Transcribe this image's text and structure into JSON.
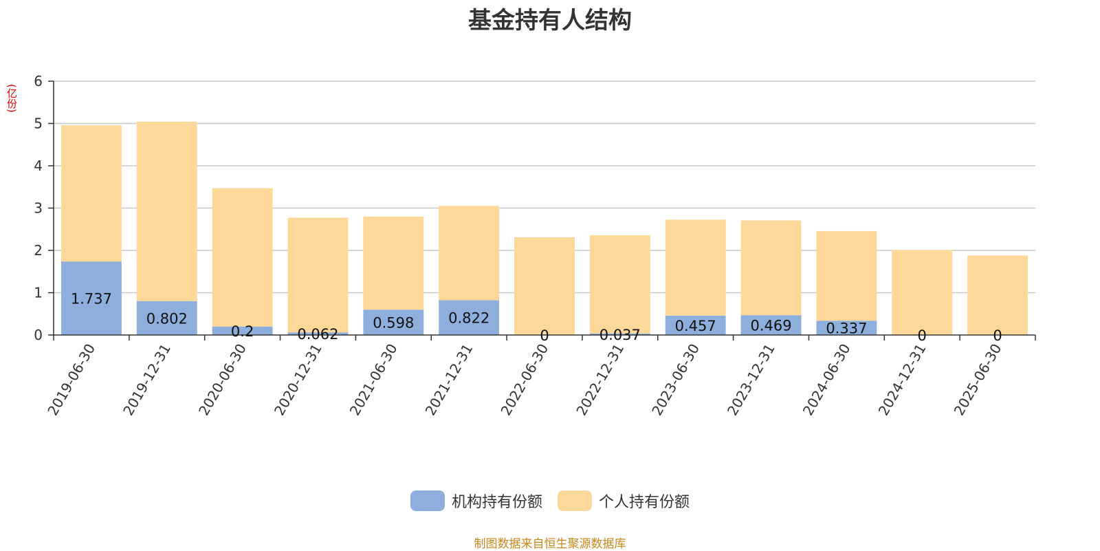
{
  "chart_data": {
    "type": "bar",
    "stacked": true,
    "title": "基金持有人结构",
    "ylabel": "(亿份)",
    "ylim": [
      0,
      6
    ],
    "yticks": [
      0,
      1,
      2,
      3,
      4,
      5,
      6
    ],
    "grid": true,
    "legend_position": "bottom",
    "categories": [
      "2019-06-30",
      "2019-12-31",
      "2020-06-30",
      "2020-12-31",
      "2021-06-30",
      "2021-12-31",
      "2022-06-30",
      "2022-12-31",
      "2023-06-30",
      "2023-12-31",
      "2024-06-30",
      "2024-12-31",
      "2025-06-30"
    ],
    "series": [
      {
        "name": "机构持有份额",
        "color": "#8eaedb",
        "values": [
          1.737,
          0.802,
          0.2,
          0.062,
          0.598,
          0.822,
          0,
          0.037,
          0.457,
          0.469,
          0.337,
          0,
          0
        ],
        "labels": [
          "1.737",
          "0.802",
          "0.2",
          "0.062",
          "0.598",
          "0.822",
          "0",
          "0.037",
          "0.457",
          "0.469",
          "0.337",
          "0",
          "0"
        ]
      },
      {
        "name": "个人持有份额",
        "color": "#fed899",
        "values": [
          3.22,
          4.24,
          3.27,
          2.71,
          2.2,
          2.23,
          2.31,
          2.32,
          2.27,
          2.24,
          2.12,
          2.01,
          1.88
        ]
      }
    ]
  },
  "source": "制图数据来自恒生聚源数据库"
}
